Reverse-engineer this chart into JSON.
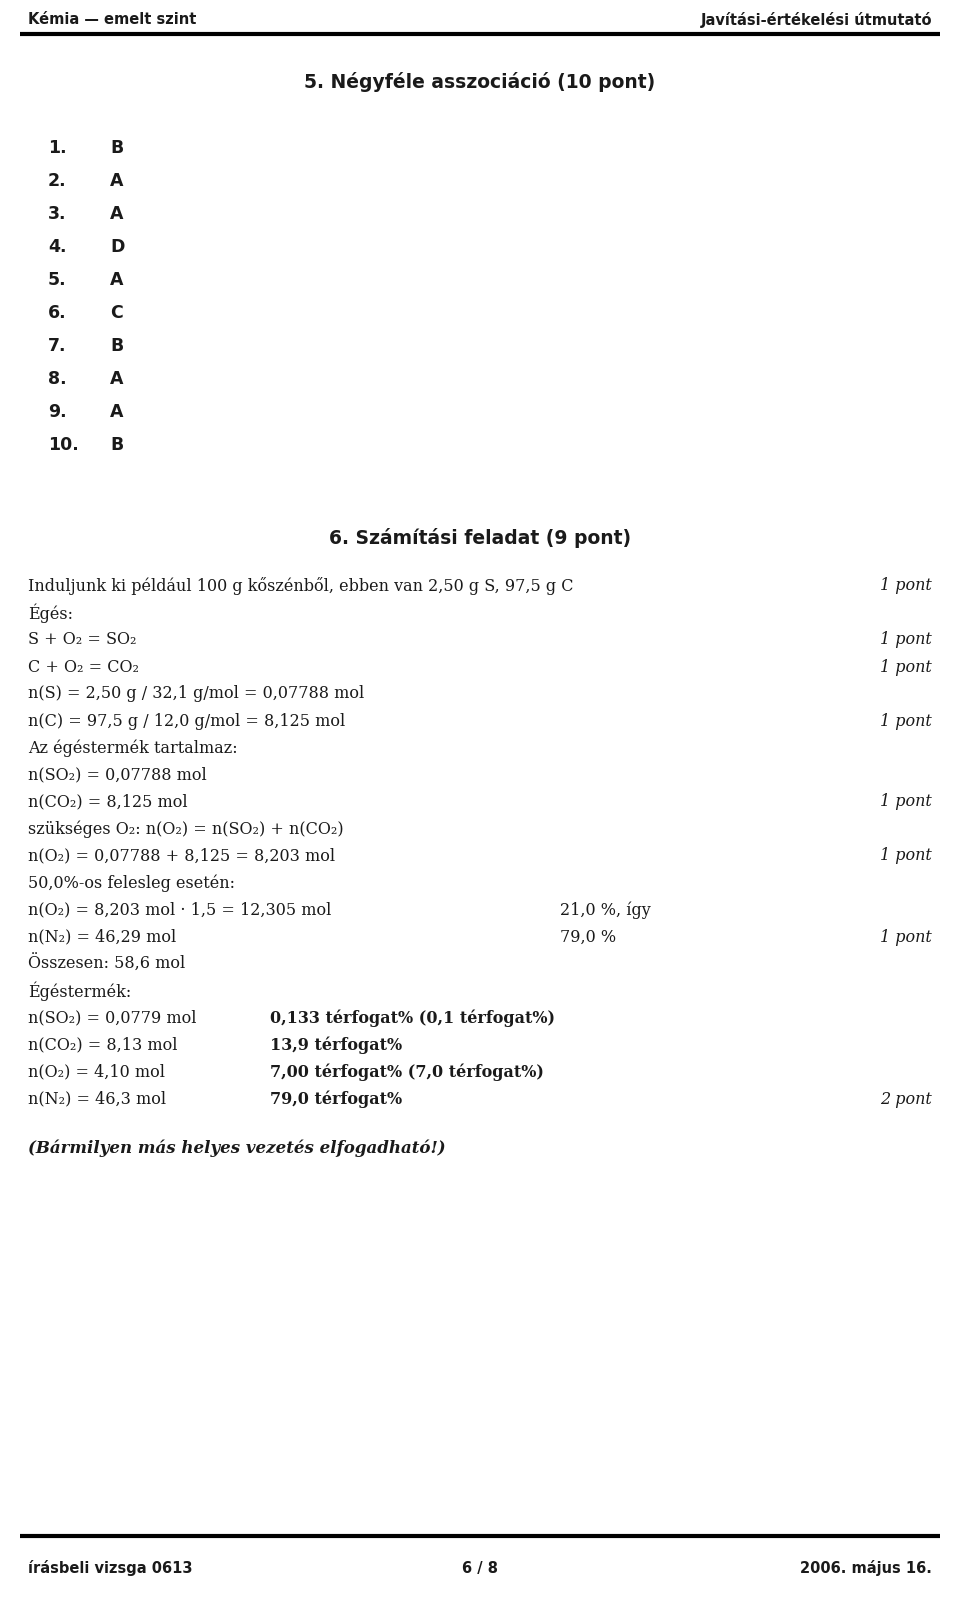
{
  "bg_color": "#ffffff",
  "text_color": "#1a1a1a",
  "header_left": "Kémia — emelt szint",
  "header_right": "Javítási-értékelési útmutató",
  "footer_left": "írásbeli vizsga 0613",
  "footer_center": "6 / 8",
  "footer_right": "2006. május 16.",
  "section1_title": "5. Négyféle asszociáció (10 pont)",
  "section1_items": [
    [
      "1.",
      "B"
    ],
    [
      "2.",
      "A"
    ],
    [
      "3.",
      "A"
    ],
    [
      "4.",
      "D"
    ],
    [
      "5.",
      "A"
    ],
    [
      "6.",
      "C"
    ],
    [
      "7.",
      "B"
    ],
    [
      "8.",
      "A"
    ],
    [
      "9.",
      "A"
    ],
    [
      "10.",
      "B"
    ]
  ],
  "section2_title": "6. Számítási feladat (9 pont)",
  "section2_lines": [
    {
      "text": "Induljunk ki például 100 g kőszénből, ebben van 2,50 g S, 97,5 g C",
      "right": "1 pont"
    },
    {
      "text": "Égés:",
      "right": ""
    },
    {
      "text": "S + O₂ = SO₂",
      "right": "1 pont"
    },
    {
      "text": "C + O₂ = CO₂",
      "right": "1 pont"
    },
    {
      "text": "n(S) = 2,50 g / 32,1 g/mol = 0,07788 mol",
      "right": ""
    },
    {
      "text": "n(C) = 97,5 g / 12,0 g/mol = 8,125 mol",
      "right": "1 pont"
    },
    {
      "text": "Az égéstermék tartalmaz:",
      "right": ""
    },
    {
      "text": "n(SO₂) = 0,07788 mol",
      "right": ""
    },
    {
      "text": "n(CO₂) = 8,125 mol",
      "right": "1 pont"
    },
    {
      "text": "szükséges O₂: n(O₂) = n(SO₂) + n(CO₂)",
      "right": ""
    },
    {
      "text": "n(O₂) = 0,07788 + 8,125 = 8,203 mol",
      "right": "1 pont"
    },
    {
      "text": "50,0%-os felesleg esetén:",
      "right": ""
    },
    {
      "text": "n(O₂) = 8,203 mol · 1,5 = 12,305 mol",
      "mid": "21,0 %, így",
      "right": ""
    },
    {
      "text": "n(N₂) = 46,29 mol",
      "mid": "79,0 %",
      "right": "1 pont"
    },
    {
      "text": "Összesen: 58,6 mol",
      "right": ""
    },
    {
      "text": "Égéstermék:",
      "right": ""
    },
    {
      "text": "n(SO₂) = 0,0779 mol",
      "bold_right": "0,133 térfogat% (0,1 térfogat%)",
      "right": ""
    },
    {
      "text": "n(CO₂) = 8,13 mol",
      "bold_right": "13,9 térfogat%",
      "right": ""
    },
    {
      "text": "n(O₂) = 4,10 mol",
      "bold_right": "7,00 térfogat% (7,0 térfogat%)",
      "right": ""
    },
    {
      "text": "n(N₂) = 46,3 mol",
      "bold_right": "79,0 térfogat%",
      "right": "2 pont"
    }
  ],
  "final_line": "(Bármilyen más helyes vezetés elfogadható!)"
}
